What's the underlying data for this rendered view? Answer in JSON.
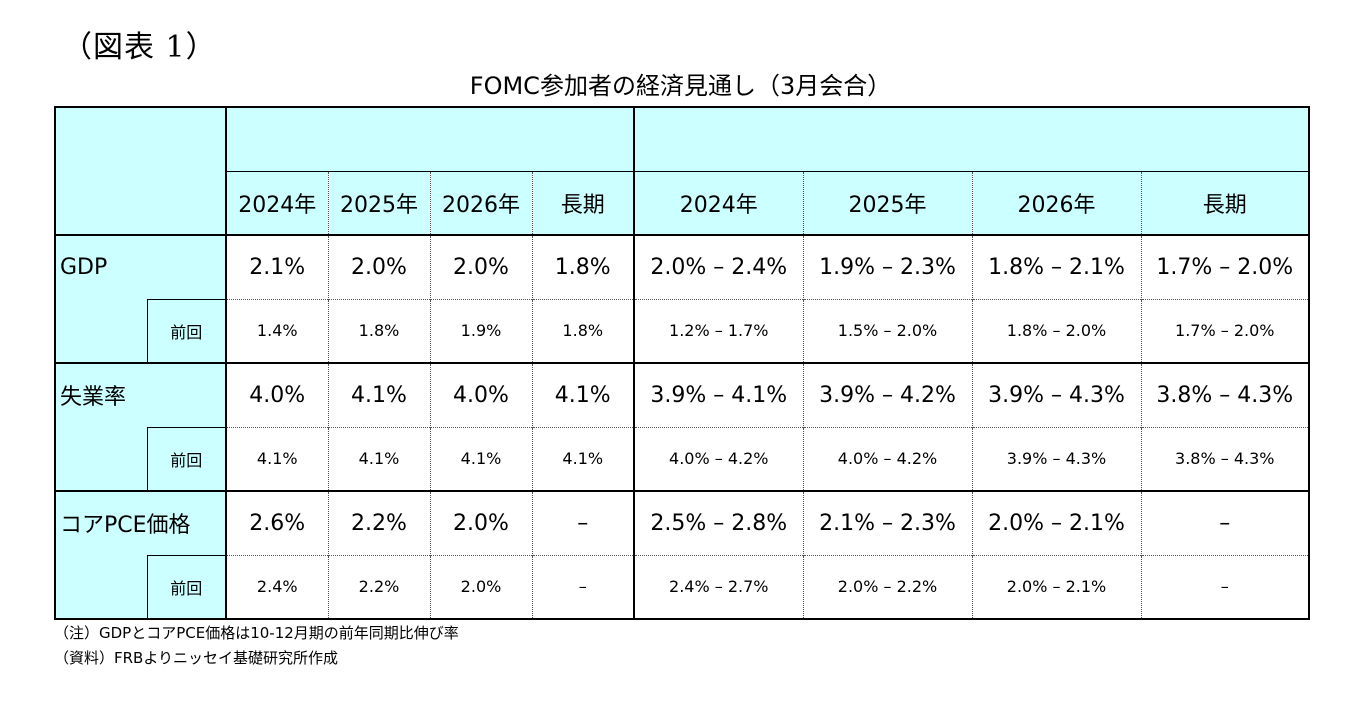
{
  "figure_label": "（図表 1）",
  "title": "FOMC参加者の経済見通し（3月会合）",
  "header": {
    "years_median": [
      "2024年",
      "2025年",
      "2026年",
      "長期"
    ],
    "years_range": [
      "2024年",
      "2025年",
      "2026年",
      "長期"
    ]
  },
  "rows": [
    {
      "label": "GDP",
      "current": [
        "2.1%",
        "2.0%",
        "2.0%",
        "1.8%",
        "2.0% – 2.4%",
        "1.9% – 2.3%",
        "1.8% – 2.1%",
        "1.7% – 2.0%"
      ],
      "previous_label": "前回",
      "previous": [
        "1.4%",
        "1.8%",
        "1.9%",
        "1.8%",
        "1.2% – 1.7%",
        "1.5% – 2.0%",
        "1.8% – 2.0%",
        "1.7% – 2.0%"
      ]
    },
    {
      "label": "失業率",
      "current": [
        "4.0%",
        "4.1%",
        "4.0%",
        "4.1%",
        "3.9% – 4.1%",
        "3.9% – 4.2%",
        "3.9% – 4.3%",
        "3.8% – 4.3%"
      ],
      "previous_label": "前回",
      "previous": [
        "4.1%",
        "4.1%",
        "4.1%",
        "4.1%",
        "4.0% – 4.2%",
        "4.0% – 4.2%",
        "3.9% – 4.3%",
        "3.8% – 4.3%"
      ]
    },
    {
      "label": "コアPCE価格",
      "current": [
        "2.6%",
        "2.2%",
        "2.0%",
        "–",
        "2.5% – 2.8%",
        "2.1% – 2.3%",
        "2.0% – 2.1%",
        "–"
      ],
      "previous_label": "前回",
      "previous": [
        "2.4%",
        "2.2%",
        "2.0%",
        "–",
        "2.4% – 2.7%",
        "2.0% – 2.2%",
        "2.0% – 2.1%",
        "–"
      ]
    }
  ],
  "notes": [
    "（注）GDPとコアPCE価格は10-12月期の前年同期比伸び率",
    "（資料）FRBよりニッセイ基礎研究所作成"
  ]
}
